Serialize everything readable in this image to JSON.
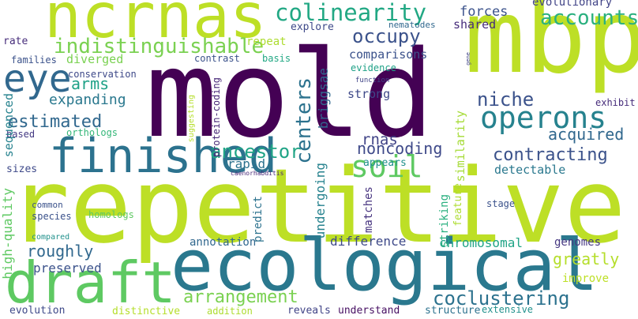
{
  "words": [
    {
      "text": "ncrnas",
      "color": "#bddf26"
    },
    {
      "text": "mbp",
      "color": "#bddf26"
    },
    {
      "text": "mold",
      "color": "#440154"
    },
    {
      "text": "repetitive",
      "color": "#bddf26"
    },
    {
      "text": "ecological",
      "color": "#2a788e"
    },
    {
      "text": "draft",
      "color": "#5ec962"
    },
    {
      "text": "finished",
      "color": "#2c728e"
    },
    {
      "text": "eye",
      "color": "#31688e"
    },
    {
      "text": "operons",
      "color": "#26828e"
    },
    {
      "text": "colinearity",
      "color": "#22a884"
    },
    {
      "text": "indistinguishable",
      "color": "#7ad151"
    },
    {
      "text": "occupy",
      "color": "#3b528b"
    },
    {
      "text": "accounts",
      "color": "#2ab07f"
    },
    {
      "text": "forces",
      "color": "#3b528b"
    },
    {
      "text": "evolutionary",
      "color": "#414487"
    },
    {
      "text": "shared",
      "color": "#472d7b"
    },
    {
      "text": "explore",
      "color": "#3e4989"
    },
    {
      "text": "nematodes",
      "color": "#31688e"
    },
    {
      "text": "repeat",
      "color": "#addc30"
    },
    {
      "text": "rate",
      "color": "#472d7b"
    },
    {
      "text": "families",
      "color": "#3b528b"
    },
    {
      "text": "diverged",
      "color": "#7ad151"
    },
    {
      "text": "contrast",
      "color": "#3b528b"
    },
    {
      "text": "basis",
      "color": "#22a884"
    },
    {
      "text": "comparisons",
      "color": "#3b528b"
    },
    {
      "text": "conservation",
      "color": "#3e4989"
    },
    {
      "text": "evidence",
      "color": "#1fa187"
    },
    {
      "text": "arms",
      "color": "#1fa187"
    },
    {
      "text": "function",
      "color": "#414487"
    },
    {
      "text": "expanding",
      "color": "#2a788e"
    },
    {
      "text": "niche",
      "color": "#3b528b"
    },
    {
      "text": "strong",
      "color": "#3e4989"
    },
    {
      "text": "exhibit",
      "color": "#472d7b"
    },
    {
      "text": "estimated",
      "color": "#31688e"
    },
    {
      "text": "centers",
      "color": "#2c728e"
    },
    {
      "text": "briggsae",
      "color": "#31688e"
    },
    {
      "text": "rnas",
      "color": "#414487"
    },
    {
      "text": "protein-coding",
      "color": "#482878"
    },
    {
      "text": "suggesting",
      "color": "#b5de2b"
    },
    {
      "text": "sequenced",
      "color": "#26828e"
    },
    {
      "text": "orthologs",
      "color": "#35b779"
    },
    {
      "text": "based",
      "color": "#443983"
    },
    {
      "text": "ancestor",
      "color": "#20a486"
    },
    {
      "text": "noncoding",
      "color": "#3e4989"
    },
    {
      "text": "soil",
      "color": "#5ec962"
    },
    {
      "text": "acquired",
      "color": "#31688e"
    },
    {
      "text": "contracting",
      "color": "#3b528b"
    },
    {
      "text": "similarity",
      "color": "#a5db36"
    },
    {
      "text": "sizes",
      "color": "#3e4989"
    },
    {
      "text": "rapid",
      "color": "#2c728e"
    },
    {
      "text": "appears",
      "color": "#21918c"
    },
    {
      "text": "detectable",
      "color": "#2a788e"
    },
    {
      "text": "caenorhabditis",
      "color": "#482878"
    },
    {
      "text": "high-quality",
      "color": "#5ec962"
    },
    {
      "text": "common",
      "color": "#3b528b"
    },
    {
      "text": "species",
      "color": "#3b528b"
    },
    {
      "text": "homologs",
      "color": "#5ec962"
    },
    {
      "text": "undergoing",
      "color": "#26828e"
    },
    {
      "text": "matches",
      "color": "#46337f"
    },
    {
      "text": "predict",
      "color": "#2c728e"
    },
    {
      "text": "striking",
      "color": "#2ab07f"
    },
    {
      "text": "feature",
      "color": "#addc30"
    },
    {
      "text": "stage",
      "color": "#3b528b"
    },
    {
      "text": "gene",
      "color": "#414487"
    },
    {
      "text": "compared",
      "color": "#21918c"
    },
    {
      "text": "annotation",
      "color": "#31688e"
    },
    {
      "text": "difference",
      "color": "#3e4989"
    },
    {
      "text": "chromosomal",
      "color": "#20a486"
    },
    {
      "text": "genomes",
      "color": "#453781"
    },
    {
      "text": "roughly",
      "color": "#31688e"
    },
    {
      "text": "greatly",
      "color": "#b5de2b"
    },
    {
      "text": "preserved",
      "color": "#3b528b"
    },
    {
      "text": "improve",
      "color": "#bddf26"
    },
    {
      "text": "arrangement",
      "color": "#7ad151"
    },
    {
      "text": "coclustering",
      "color": "#2c728e"
    },
    {
      "text": "evolution",
      "color": "#3e4989"
    },
    {
      "text": "distinctive",
      "color": "#b5de2b"
    },
    {
      "text": "addition",
      "color": "#addc30"
    },
    {
      "text": "reveals",
      "color": "#414487"
    },
    {
      "text": "understand",
      "color": "#471063"
    },
    {
      "text": "structure",
      "color": "#2c728e"
    },
    {
      "text": "extensive",
      "color": "#21918c"
    }
  ]
}
